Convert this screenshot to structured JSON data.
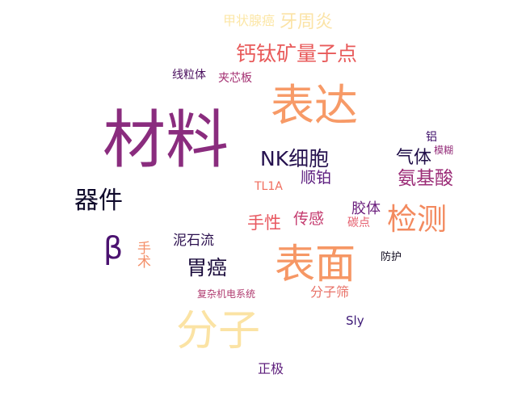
{
  "word_cloud": {
    "words": [
      {
        "text": "甲状腺癌",
        "color": "#fce7a8"
      },
      {
        "text": "牙周炎",
        "color": "#fbe3a6"
      },
      {
        "text": "钙钛矿量子点",
        "color": "#e85a5a"
      },
      {
        "text": "线粒体",
        "color": "#4a0f5e"
      },
      {
        "text": "夹芯板",
        "color": "#a43072"
      },
      {
        "text": "表达",
        "color": "#f79a67"
      },
      {
        "text": "材料",
        "color": "#8a2c7e"
      },
      {
        "text": "NK细胞",
        "color": "#26124f"
      },
      {
        "text": "铝",
        "color": "#3f0f6a"
      },
      {
        "text": "模糊",
        "color": "#932b78"
      },
      {
        "text": "气体",
        "color": "#1f0d47"
      },
      {
        "text": "顺铂",
        "color": "#5a1a7d"
      },
      {
        "text": "氨基酸",
        "color": "#9b2c77"
      },
      {
        "text": "TL1A",
        "color": "#f06d5e"
      },
      {
        "text": "器件",
        "color": "#0f0a2b"
      },
      {
        "text": "胶体",
        "color": "#6b1f7d"
      },
      {
        "text": "检测",
        "color": "#f38a5f"
      },
      {
        "text": "手性",
        "color": "#e8575f"
      },
      {
        "text": "传感",
        "color": "#c43a6e"
      },
      {
        "text": "碳点",
        "color": "#e45b6b"
      },
      {
        "text": "β",
        "color": "#4b1270"
      },
      {
        "text": "泥石流",
        "color": "#2b0f4e"
      },
      {
        "text": "手术",
        "color": "#f4906a"
      },
      {
        "text": "表面",
        "color": "#f69765"
      },
      {
        "text": "胃癌",
        "color": "#1b0c3c"
      },
      {
        "text": "防护",
        "color": "#0f0a1e"
      },
      {
        "text": "复杂机电系统",
        "color": "#b03c70"
      },
      {
        "text": "分子筛",
        "color": "#e87268"
      },
      {
        "text": "分子",
        "color": "#fbe3a4"
      },
      {
        "text": "Sly",
        "color": "#3e1a77"
      },
      {
        "text": "正极",
        "color": "#5c1c7b"
      }
    ]
  }
}
